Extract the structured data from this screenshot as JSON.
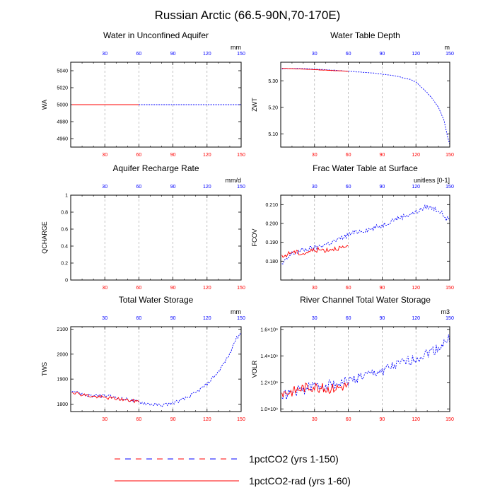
{
  "suptitle": "Russian Arctic (66.5-90N,70-170E)",
  "colors": {
    "series1": "#0000ff",
    "series2": "#ff0000",
    "grid": "#999999"
  },
  "legend": {
    "placement": "bottom-center",
    "items": [
      {
        "label": "1pctCO2 (yrs 1-150)",
        "style": "dashed",
        "colors": [
          "#ff0000",
          "#0000ff"
        ]
      },
      {
        "label": "1pctCO2-rad (yrs 1-60)",
        "style": "solid",
        "colors": [
          "#ff0000"
        ]
      }
    ]
  },
  "chart_data": [
    {
      "type": "line",
      "title": "Water in Unconfined Aquifer",
      "ylabel": "WA",
      "unit": "mm",
      "xlim": [
        0,
        150
      ],
      "ylim": [
        4950,
        5050
      ],
      "xticks": [
        30,
        60,
        90,
        120,
        150
      ],
      "yticks": [
        4960,
        4980,
        5000,
        5020,
        5040
      ],
      "grid": "vertical dashed",
      "series": [
        {
          "x": [
            1,
            150
          ],
          "y": [
            5000,
            5000
          ]
        },
        {
          "x": [
            1,
            60
          ],
          "y": [
            5000,
            5000
          ]
        }
      ]
    },
    {
      "type": "line",
      "title": "Water Table Depth",
      "ylabel": "ZWT",
      "unit": "m",
      "xlim": [
        0,
        150
      ],
      "ylim": [
        5.05,
        5.37
      ],
      "xticks": [
        30,
        60,
        90,
        120,
        150
      ],
      "yticks": [
        5.1,
        5.2,
        5.3
      ],
      "grid": "vertical dashed",
      "series": [
        {
          "x": [
            1,
            10,
            20,
            30,
            40,
            50,
            60,
            70,
            80,
            90,
            100,
            110,
            115,
            120,
            125,
            130,
            135,
            140,
            145,
            148,
            150
          ],
          "y": [
            5.345,
            5.347,
            5.346,
            5.344,
            5.342,
            5.339,
            5.336,
            5.333,
            5.33,
            5.325,
            5.32,
            5.31,
            5.305,
            5.295,
            5.275,
            5.255,
            5.23,
            5.2,
            5.15,
            5.09,
            5.06
          ]
        },
        {
          "x": [
            1,
            10,
            20,
            30,
            40,
            50,
            60
          ],
          "y": [
            5.347,
            5.346,
            5.344,
            5.342,
            5.34,
            5.338,
            5.336
          ]
        }
      ]
    },
    {
      "type": "line",
      "title": "Aquifer Recharge Rate",
      "ylabel": "QCHARGE",
      "unit": "mm/d",
      "xlim": [
        0,
        150
      ],
      "ylim": [
        0,
        1
      ],
      "xticks": [
        30,
        60,
        90,
        120,
        150
      ],
      "yticks": [
        0.0,
        0.2,
        0.4,
        0.6,
        0.8,
        1.0
      ],
      "grid": "vertical dashed",
      "series": []
    },
    {
      "type": "line",
      "title": "Frac Water Table at Surface",
      "ylabel": "FCOV",
      "unit": "unitless [0-1]",
      "xlim": [
        0,
        150
      ],
      "ylim": [
        0.17,
        0.215
      ],
      "xticks": [
        30,
        60,
        90,
        120,
        150
      ],
      "yticks": [
        0.18,
        0.19,
        0.2,
        0.21
      ],
      "grid": "vertical dashed",
      "series": [
        {
          "x": [
            1,
            10,
            20,
            30,
            40,
            50,
            60,
            70,
            80,
            90,
            100,
            110,
            120,
            130,
            140,
            150
          ],
          "y": [
            0.178,
            0.184,
            0.186,
            0.187,
            0.189,
            0.191,
            0.194,
            0.196,
            0.197,
            0.199,
            0.202,
            0.204,
            0.206,
            0.209,
            0.207,
            0.201
          ]
        },
        {
          "x": [
            1,
            10,
            20,
            30,
            40,
            50,
            60
          ],
          "y": [
            0.182,
            0.185,
            0.184,
            0.186,
            0.186,
            0.187,
            0.187
          ]
        }
      ]
    },
    {
      "type": "line",
      "title": "Total Water Storage",
      "ylabel": "TWS",
      "unit": "mm",
      "xlim": [
        0,
        150
      ],
      "ylim": [
        1770,
        2110
      ],
      "xticks": [
        30,
        60,
        90,
        120,
        150
      ],
      "yticks": [
        1800,
        1900,
        2000,
        2100
      ],
      "grid": "vertical dashed",
      "series": [
        {
          "x": [
            1,
            10,
            20,
            30,
            40,
            50,
            60,
            70,
            80,
            90,
            100,
            110,
            120,
            130,
            140,
            145,
            150
          ],
          "y": [
            1855,
            1840,
            1832,
            1835,
            1825,
            1818,
            1808,
            1800,
            1795,
            1805,
            1820,
            1845,
            1880,
            1930,
            2000,
            2060,
            2080
          ]
        },
        {
          "x": [
            1,
            10,
            20,
            30,
            40,
            50,
            60
          ],
          "y": [
            1850,
            1838,
            1830,
            1826,
            1822,
            1815,
            1810
          ]
        }
      ]
    },
    {
      "type": "line",
      "title": "River Channel Total Water Storage",
      "ylabel": "VOLR",
      "unit": "m3",
      "xlim": [
        0,
        150
      ],
      "ylim": [
        980000000,
        1620000000
      ],
      "xticks": [
        30,
        60,
        90,
        120,
        150
      ],
      "yticks": [
        1000000000,
        1200000000,
        1400000000,
        1600000000
      ],
      "ytick_labels": [
        "1.0×10⁹",
        "1.2×10⁹",
        "1.4×10⁹",
        "1.6×10⁹"
      ],
      "grid": "vertical dashed",
      "series": [
        {
          "x": [
            1,
            10,
            20,
            30,
            40,
            50,
            60,
            70,
            80,
            90,
            100,
            110,
            120,
            130,
            140,
            150
          ],
          "y": [
            1100000000,
            1120000000,
            1150000000,
            1170000000,
            1180000000,
            1190000000,
            1210000000,
            1240000000,
            1260000000,
            1290000000,
            1320000000,
            1350000000,
            1380000000,
            1420000000,
            1460000000,
            1530000000
          ]
        },
        {
          "x": [
            1,
            10,
            20,
            30,
            40,
            50,
            60
          ],
          "y": [
            1120000000,
            1130000000,
            1160000000,
            1170000000,
            1150000000,
            1160000000,
            1180000000
          ]
        }
      ]
    }
  ]
}
